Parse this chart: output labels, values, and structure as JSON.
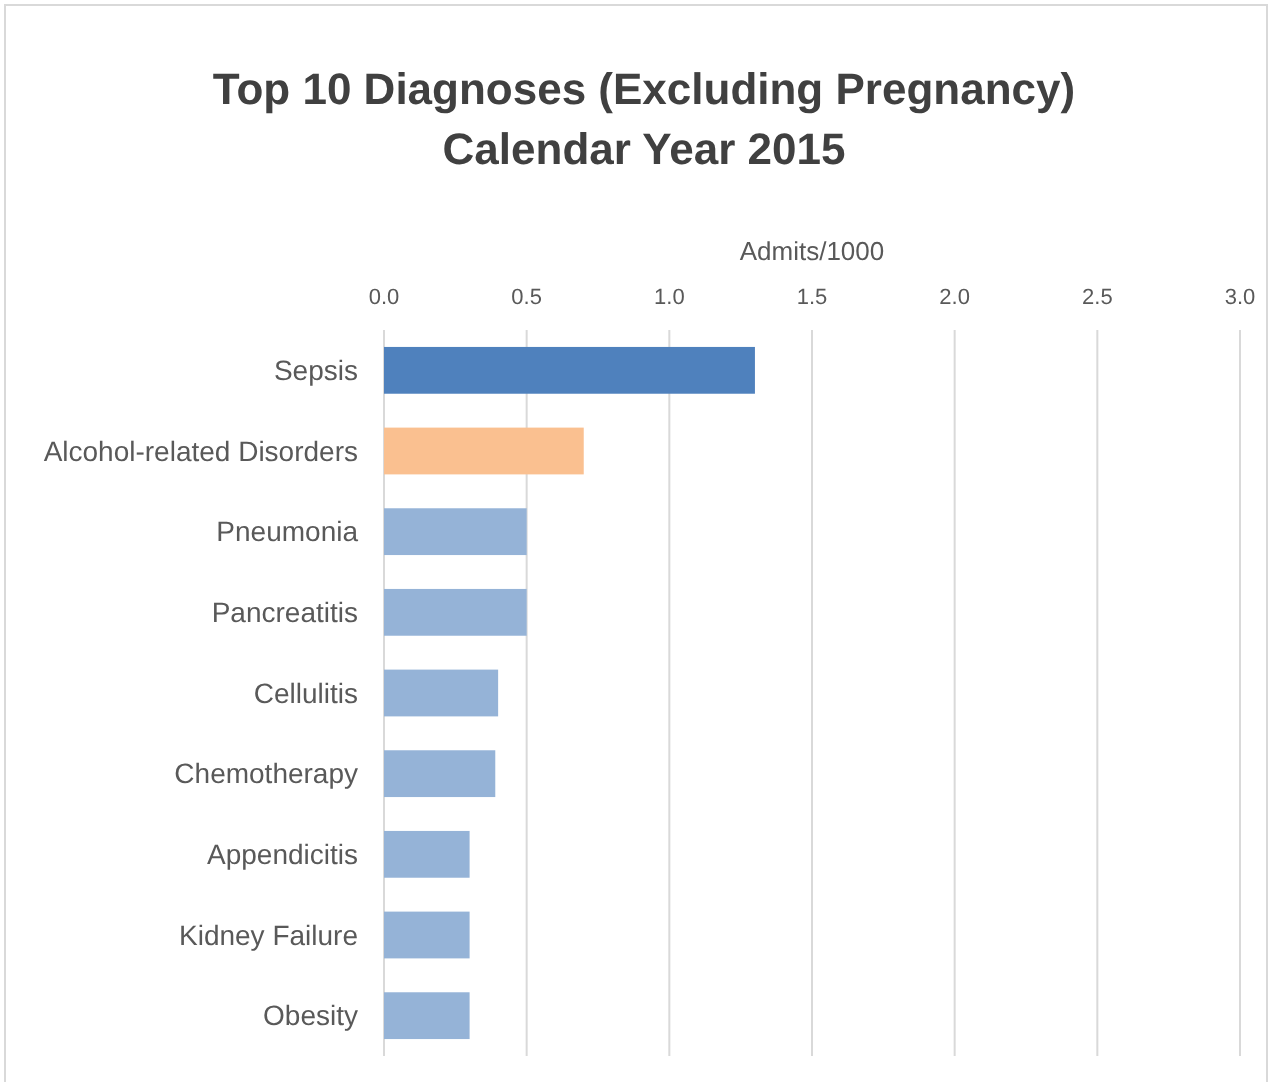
{
  "chart_data": {
    "type": "bar",
    "orientation": "horizontal",
    "title": "Top 10 Diagnoses (Excluding Pregnancy)",
    "subtitle": "Calendar Year 2015",
    "xlabel": "Admits/1000",
    "categories": [
      "Sepsis",
      "Alcohol-related Disorders",
      "Pneumonia",
      "Pancreatitis",
      "Cellulitis",
      "Chemotherapy",
      "Appendicitis",
      "Kidney Failure",
      "Obesity"
    ],
    "values": [
      1.3,
      0.7,
      0.5,
      0.5,
      0.4,
      0.39,
      0.3,
      0.3,
      0.3
    ],
    "colors": [
      "#4f81bd",
      "#fac090",
      "#95b3d7",
      "#95b3d7",
      "#95b3d7",
      "#95b3d7",
      "#95b3d7",
      "#95b3d7",
      "#95b3d7"
    ],
    "xlim": [
      0,
      3
    ],
    "xticks": [
      {
        "value": 0,
        "label": "0.0"
      },
      {
        "value": 0.5,
        "label": "0.5"
      },
      {
        "value": 1,
        "label": "1.0"
      },
      {
        "value": 1.5,
        "label": "1.5"
      },
      {
        "value": 2,
        "label": "2.0"
      },
      {
        "value": 2.5,
        "label": "2.5"
      },
      {
        "value": 3,
        "label": "3.0"
      }
    ],
    "grid": "x"
  }
}
